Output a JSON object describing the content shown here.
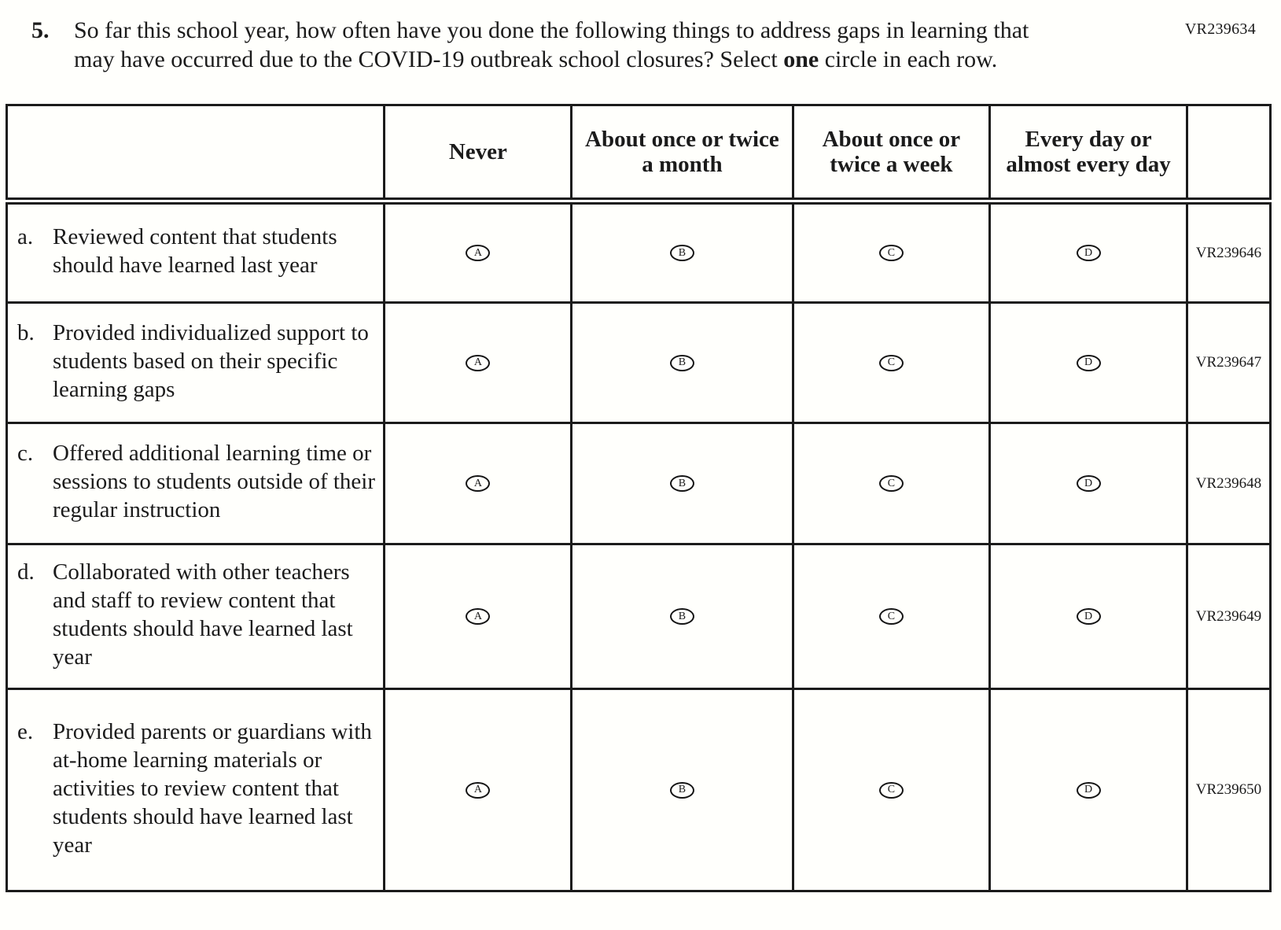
{
  "page": {
    "form_code": "VR239634",
    "question": {
      "number": "5.",
      "text_start": "So far this school year, how often have you done the following things to address gaps in learning that may have occurred due to the COVID-19 outbreak school closures? Select ",
      "bold_word": "one",
      "text_end": " circle in each row."
    }
  },
  "table": {
    "columns": [
      "Never",
      "About once or twice a month",
      "About once or twice a week",
      "Every day or almost every day"
    ],
    "options": [
      "A",
      "B",
      "C",
      "D"
    ],
    "rows": [
      {
        "letter": "a.",
        "text": "Reviewed content that students should have learned last year",
        "code": "VR239646"
      },
      {
        "letter": "b.",
        "text": "Provided individualized support to students based on their specific learning gaps",
        "code": "VR239647"
      },
      {
        "letter": "c.",
        "text": "Offered additional learning time or sessions to students outside of their regular instruction",
        "code": "VR239648"
      },
      {
        "letter": "d.",
        "text": "Collaborated with other teachers and staff to review content that students should have learned last year",
        "code": "VR239649"
      },
      {
        "letter": "e.",
        "text": "Provided parents or guardians with at-home learning materials or activities to review content that students should have learned last year",
        "code": "VR239650"
      }
    ]
  },
  "colors": {
    "ink": "#1b1b1b",
    "background": "#fffffc"
  }
}
